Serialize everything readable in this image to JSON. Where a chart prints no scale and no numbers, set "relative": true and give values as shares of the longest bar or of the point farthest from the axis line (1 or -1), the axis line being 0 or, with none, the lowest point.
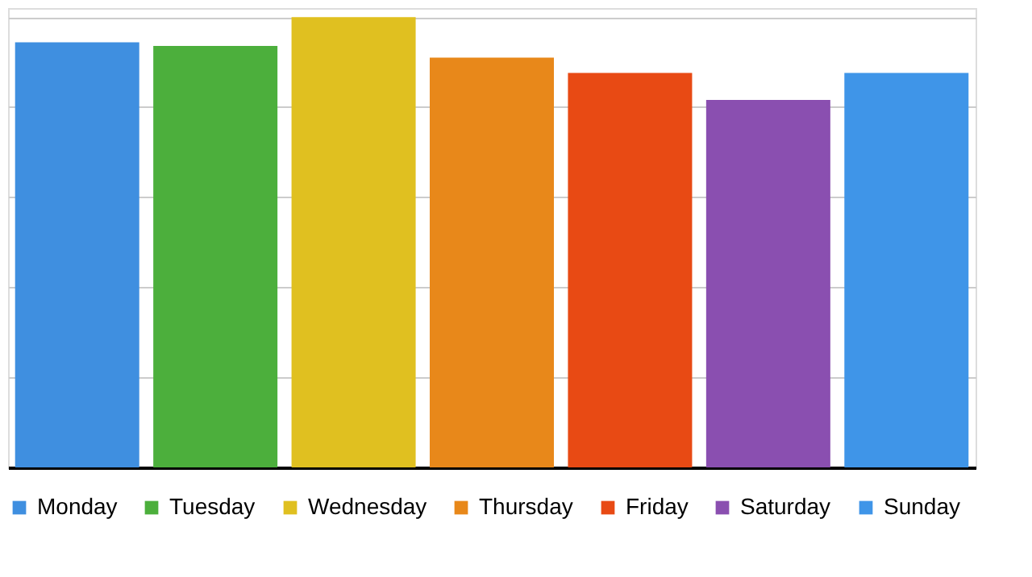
{
  "chart_data": {
    "type": "bar",
    "relative": true,
    "categories": [
      null,
      null,
      null,
      null,
      null,
      null,
      null
    ],
    "series": [
      {
        "name": "Monday",
        "color": "#3f8fe0",
        "values": [
          0.944,
          null,
          null,
          null,
          null,
          null,
          null
        ]
      },
      {
        "name": "Tuesday",
        "color": "#4caf3c",
        "values": [
          null,
          0.936,
          null,
          null,
          null,
          null,
          null
        ]
      },
      {
        "name": "Wednesday",
        "color": "#e0c020",
        "values": [
          null,
          null,
          1,
          null,
          null,
          null,
          null
        ]
      },
      {
        "name": "Thursday",
        "color": "#e8881a",
        "values": [
          null,
          null,
          null,
          0.91,
          null,
          null,
          null
        ]
      },
      {
        "name": "Friday",
        "color": "#e84a14",
        "values": [
          null,
          null,
          null,
          null,
          0.876,
          null,
          null
        ]
      },
      {
        "name": "Saturday",
        "color": "#8a4fb0",
        "values": [
          null,
          null,
          null,
          null,
          null,
          0.816,
          null
        ]
      },
      {
        "name": "Sunday",
        "color": "#3f95e8",
        "values": [
          null,
          null,
          null,
          null,
          null,
          null,
          0.876
        ]
      }
    ],
    "stacked": true,
    "grid": "y",
    "legend": "bottom",
    "tick_labels": false
  }
}
